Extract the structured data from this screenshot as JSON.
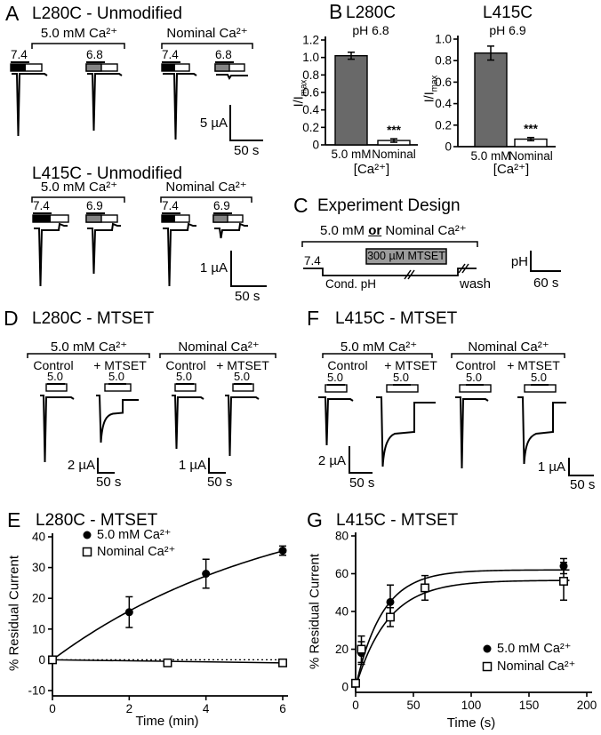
{
  "panels": {
    "A": {
      "label": "A",
      "sections": [
        {
          "title": "L280C - Unmodified",
          "group1": "5.0 mM Ca²⁺",
          "group2": "Nominal Ca²⁺",
          "ph_labels": [
            "7.4",
            "6.8",
            "7.4",
            "6.8"
          ],
          "scale_v": "5 µA",
          "scale_h": "50 s"
        },
        {
          "title": "L415C - Unmodified",
          "group1": "5.0 mM Ca²⁺",
          "group2": "Nominal Ca²⁺",
          "ph_labels": [
            "7.4",
            "6.9",
            "7.4",
            "6.9"
          ],
          "scale_v": "1 µA",
          "scale_h": "50 s"
        }
      ]
    },
    "B": {
      "label": "B"
    },
    "C": {
      "label": "C",
      "title": "Experiment Design",
      "cond_pre": "5.0 mM ",
      "cond_or": "or",
      "cond_post": " Nominal Ca²⁺",
      "ph_start": "7.4",
      "cond_ph": "Cond. pH",
      "mtset_box": "300 µM MTSET",
      "wash": "wash",
      "scale_v": "pH",
      "scale_h": "60 s"
    },
    "D": {
      "label": "D",
      "title": "L280C - MTSET",
      "group1": "5.0 mM Ca²⁺",
      "group2": "Nominal Ca²⁺",
      "cond_labels": [
        "Control",
        "+ MTSET",
        "Control",
        "+ MTSET"
      ],
      "bath_labels": [
        "5.0",
        "5.0",
        "5.0",
        "5.0"
      ],
      "scale1_v": "2 µA",
      "scale1_h": "50 s",
      "scale2_v": "1 µA",
      "scale2_h": "50 s"
    },
    "F": {
      "label": "F",
      "title": "L415C - MTSET",
      "group1": "5.0 mM Ca²⁺",
      "group2": "Nominal Ca²⁺",
      "cond_labels": [
        "Control",
        "+ MTSET",
        "Control",
        "+ MTSET"
      ],
      "bath_labels": [
        "5.0",
        "5.0",
        "5.0",
        "5.0"
      ],
      "scale1_v": "2 µA",
      "scale1_h": "50 s",
      "scale2_v": "1 µA",
      "scale2_h": "50 s"
    },
    "E": {
      "label": "E"
    },
    "G": {
      "label": "G"
    }
  },
  "chart_data": [
    {
      "id": "B-L280C",
      "type": "bar",
      "title": "L280C",
      "subtitle": "pH 6.8",
      "ylabel_base": "I/I",
      "ylabel_sub": "max",
      "xlabel": "[Ca²⁺]",
      "categories": [
        "5.0 mM",
        "Nominal"
      ],
      "values": [
        1.02,
        0.05
      ],
      "errors": [
        0.04,
        0.02
      ],
      "significance": [
        null,
        "***"
      ],
      "bar_colors": [
        "#696969",
        "#ffffff"
      ],
      "ylim": [
        0,
        1.2
      ],
      "yticks": [
        0,
        0.2,
        0.4,
        0.6,
        0.8,
        1.0,
        1.2
      ]
    },
    {
      "id": "B-L415C",
      "type": "bar",
      "title": "L415C",
      "subtitle": "pH 6.9",
      "ylabel_base": "I/I",
      "ylabel_sub": "max",
      "xlabel": "[Ca²⁺]",
      "categories": [
        "5.0 mM",
        "Nominal"
      ],
      "values": [
        0.87,
        0.07
      ],
      "errors": [
        0.065,
        0.015
      ],
      "significance": [
        null,
        "***"
      ],
      "bar_colors": [
        "#696969",
        "#ffffff"
      ],
      "ylim": [
        0,
        1.0
      ],
      "yticks": [
        0,
        0.2,
        0.4,
        0.6,
        0.8,
        1.0
      ]
    },
    {
      "id": "E",
      "type": "scatter",
      "title": "L280C - MTSET",
      "xlabel": "Time (min)",
      "ylabel": "% Residual Current",
      "xlim": [
        0,
        6
      ],
      "ylim": [
        -10,
        40
      ],
      "xticks": [
        0,
        2,
        4,
        6
      ],
      "yticks": [
        -10,
        0,
        10,
        20,
        30,
        40
      ],
      "refline_y": 0,
      "legend_position": "top-left",
      "series": [
        {
          "name": "5.0 mM Ca²⁺",
          "marker": "circle-filled",
          "x": [
            0,
            2,
            4,
            6
          ],
          "y": [
            0,
            15.5,
            28,
            35.5
          ],
          "yerr": [
            1,
            5,
            4.7,
            1.5
          ],
          "fit": {
            "type": "exp_rise",
            "plateau": 56,
            "tau": 6,
            "xmax_draw": 6
          }
        },
        {
          "name": "Nominal Ca²⁺",
          "marker": "square-open",
          "x": [
            0,
            3,
            6
          ],
          "y": [
            0,
            -1,
            -1
          ],
          "yerr": [
            0.8,
            0.8,
            0.8
          ],
          "fit": {
            "type": "linear",
            "x1": 0,
            "y1": 0,
            "x2": 6,
            "y2": -1
          }
        }
      ]
    },
    {
      "id": "G",
      "type": "scatter",
      "title": "L415C - MTSET",
      "xlabel": "Time (s)",
      "ylabel": "% Residual Current",
      "xlim": [
        0,
        200
      ],
      "ylim": [
        0,
        80
      ],
      "xticks": [
        0,
        50,
        100,
        150,
        200
      ],
      "yticks": [
        0,
        20,
        40,
        60,
        80
      ],
      "refline_y": null,
      "legend_position": "bottom-right",
      "series": [
        {
          "name": "5.0 mM Ca²⁺",
          "marker": "circle-filled",
          "x": [
            0,
            5,
            30,
            180
          ],
          "y": [
            2,
            18,
            45,
            64
          ],
          "yerr": [
            1,
            6,
            9,
            4
          ],
          "fit": {
            "type": "exp_rise",
            "plateau": 62,
            "tau": 23,
            "xmax_draw": 185
          }
        },
        {
          "name": "Nominal Ca²⁺",
          "marker": "square-open",
          "x": [
            0,
            5,
            30,
            60,
            180
          ],
          "y": [
            2,
            20,
            37,
            52.5,
            56
          ],
          "yerr": [
            1,
            7,
            5,
            6.5,
            10
          ],
          "fit": {
            "type": "exp_rise",
            "plateau": 56.5,
            "tau": 28,
            "xmax_draw": 185
          }
        }
      ]
    }
  ]
}
